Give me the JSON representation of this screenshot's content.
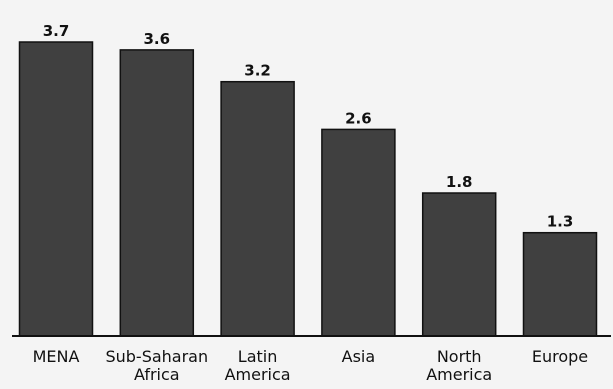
{
  "chart_data": {
    "type": "bar",
    "categories": [
      "MENA",
      "Sub-Saharan Africa",
      "Latin America",
      "Asia",
      "North America",
      "Europe"
    ],
    "category_lines": [
      [
        "MENA"
      ],
      [
        "Sub-Saharan",
        "Africa"
      ],
      [
        "Latin",
        "America"
      ],
      [
        "Asia"
      ],
      [
        "North",
        "America"
      ],
      [
        "Europe"
      ]
    ],
    "values": [
      3.7,
      3.6,
      3.2,
      2.6,
      1.8,
      1.3
    ],
    "value_labels": [
      "3.7",
      "3.6",
      "3.2",
      "2.6",
      "1.8",
      "1.3"
    ],
    "title": "",
    "xlabel": "",
    "ylabel": "",
    "ylim": [
      0,
      3.9
    ],
    "grid": false,
    "legend": "none",
    "bar_color": "#404040",
    "bar_edge_color": "#111111",
    "axis_color": "#111111",
    "background_color": "#f4f4f4",
    "text_color": "#111111"
  }
}
